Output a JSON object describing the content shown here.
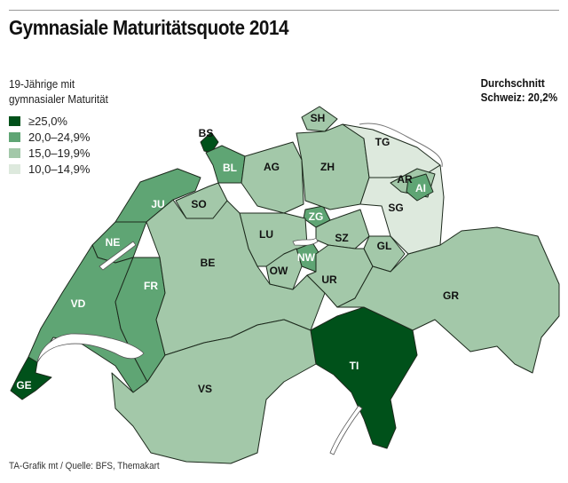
{
  "title": "Gymnasiale Maturitätsquote 2014",
  "legend": {
    "heading_line1": "19-Jährige mit",
    "heading_line2": "gymnasialer Maturität",
    "classes": [
      {
        "label": "≥25,0%",
        "color": "#00511a"
      },
      {
        "label": "20,0–24,9%",
        "color": "#5fa574"
      },
      {
        "label": "15,0–19,9%",
        "color": "#a3c8a9"
      },
      {
        "label": "10,0–14,9%",
        "color": "#dde9dd"
      }
    ]
  },
  "average": {
    "line1": "Durchschnitt",
    "line2": "Schweiz: 20,2%"
  },
  "cantons": [
    {
      "code": "BS",
      "class": 0
    },
    {
      "code": "GE",
      "class": 0
    },
    {
      "code": "TI",
      "class": 0
    },
    {
      "code": "BL",
      "class": 1
    },
    {
      "code": "JU",
      "class": 1
    },
    {
      "code": "NE",
      "class": 1
    },
    {
      "code": "VD",
      "class": 1
    },
    {
      "code": "FR",
      "class": 1
    },
    {
      "code": "ZG",
      "class": 1
    },
    {
      "code": "NW",
      "class": 1
    },
    {
      "code": "AI",
      "class": 1
    },
    {
      "code": "SH",
      "class": 2
    },
    {
      "code": "AG",
      "class": 2
    },
    {
      "code": "ZH",
      "class": 2
    },
    {
      "code": "SO",
      "class": 2
    },
    {
      "code": "LU",
      "class": 2
    },
    {
      "code": "BE",
      "class": 2
    },
    {
      "code": "OW",
      "class": 2
    },
    {
      "code": "SZ",
      "class": 2
    },
    {
      "code": "UR",
      "class": 2
    },
    {
      "code": "GL",
      "class": 2
    },
    {
      "code": "GR",
      "class": 2
    },
    {
      "code": "VS",
      "class": 2
    },
    {
      "code": "AR",
      "class": 2
    },
    {
      "code": "TG",
      "class": 3
    },
    {
      "code": "SG",
      "class": 3
    }
  ],
  "source": "TA-Grafik mt / Quelle: BFS, Themakart"
}
